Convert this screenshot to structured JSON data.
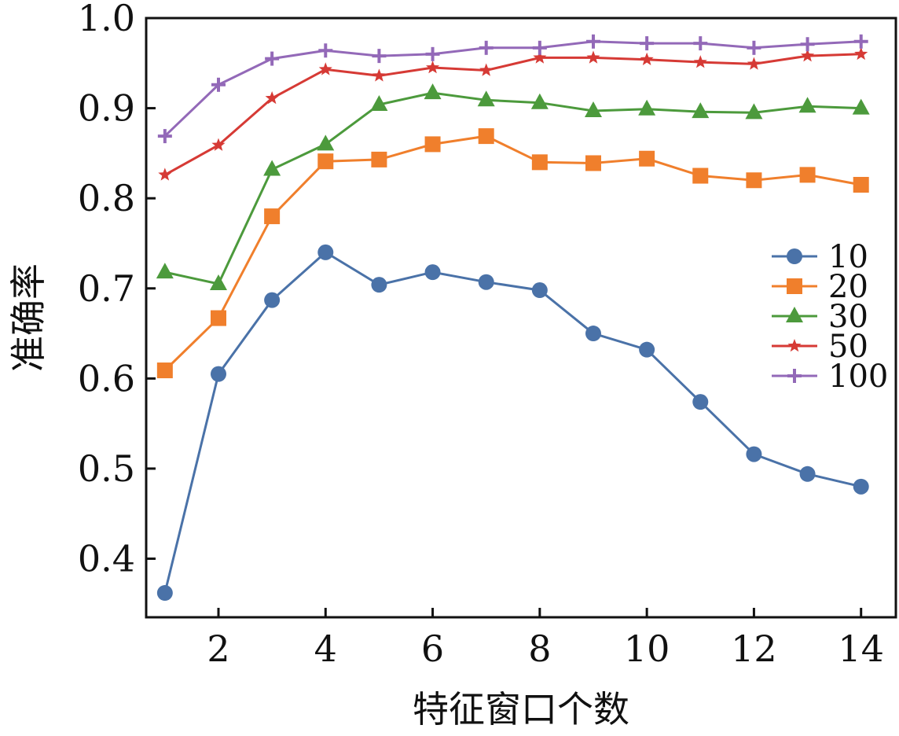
{
  "chart_data": {
    "type": "line",
    "title": "",
    "xlabel": "特征窗口个数",
    "ylabel": "准确率",
    "xlim": [
      0.65,
      14.65
    ],
    "ylim": [
      0.335,
      1.0
    ],
    "xticks": [
      2,
      4,
      6,
      8,
      10,
      12,
      14
    ],
    "xtick_labels": [
      "2",
      "4",
      "6",
      "8",
      "10",
      "12",
      "14"
    ],
    "yticks": [
      0.4,
      0.5,
      0.6,
      0.7,
      0.8,
      0.9,
      1.0
    ],
    "ytick_labels": [
      "0.4",
      "0.5",
      "0.6",
      "0.7",
      "0.8",
      "0.9",
      "1.0"
    ],
    "grid": false,
    "legend_position": "right",
    "x": [
      1,
      2,
      3,
      4,
      5,
      6,
      7,
      8,
      9,
      10,
      11,
      12,
      13,
      14
    ],
    "series": [
      {
        "name": "10",
        "color": "#4a72a8",
        "marker": "circle",
        "values": [
          0.362,
          0.605,
          0.687,
          0.74,
          0.704,
          0.718,
          0.707,
          0.698,
          0.65,
          0.632,
          0.574,
          0.516,
          0.494,
          0.48
        ]
      },
      {
        "name": "20",
        "color": "#f07f2c",
        "marker": "square",
        "values": [
          0.609,
          0.667,
          0.78,
          0.841,
          0.843,
          0.86,
          0.869,
          0.84,
          0.839,
          0.844,
          0.825,
          0.82,
          0.826,
          0.815
        ]
      },
      {
        "name": "30",
        "color": "#4c9a3c",
        "marker": "triangle",
        "values": [
          0.718,
          0.705,
          0.832,
          0.86,
          0.904,
          0.917,
          0.909,
          0.906,
          0.897,
          0.899,
          0.896,
          0.895,
          0.902,
          0.9
        ]
      },
      {
        "name": "50",
        "color": "#d63a35",
        "marker": "star",
        "values": [
          0.826,
          0.859,
          0.911,
          0.943,
          0.936,
          0.945,
          0.942,
          0.956,
          0.956,
          0.954,
          0.951,
          0.949,
          0.958,
          0.96
        ]
      },
      {
        "name": "100",
        "color": "#9369b8",
        "marker": "plus",
        "values": [
          0.869,
          0.926,
          0.955,
          0.964,
          0.958,
          0.96,
          0.967,
          0.967,
          0.974,
          0.972,
          0.972,
          0.967,
          0.971,
          0.974
        ]
      }
    ]
  }
}
